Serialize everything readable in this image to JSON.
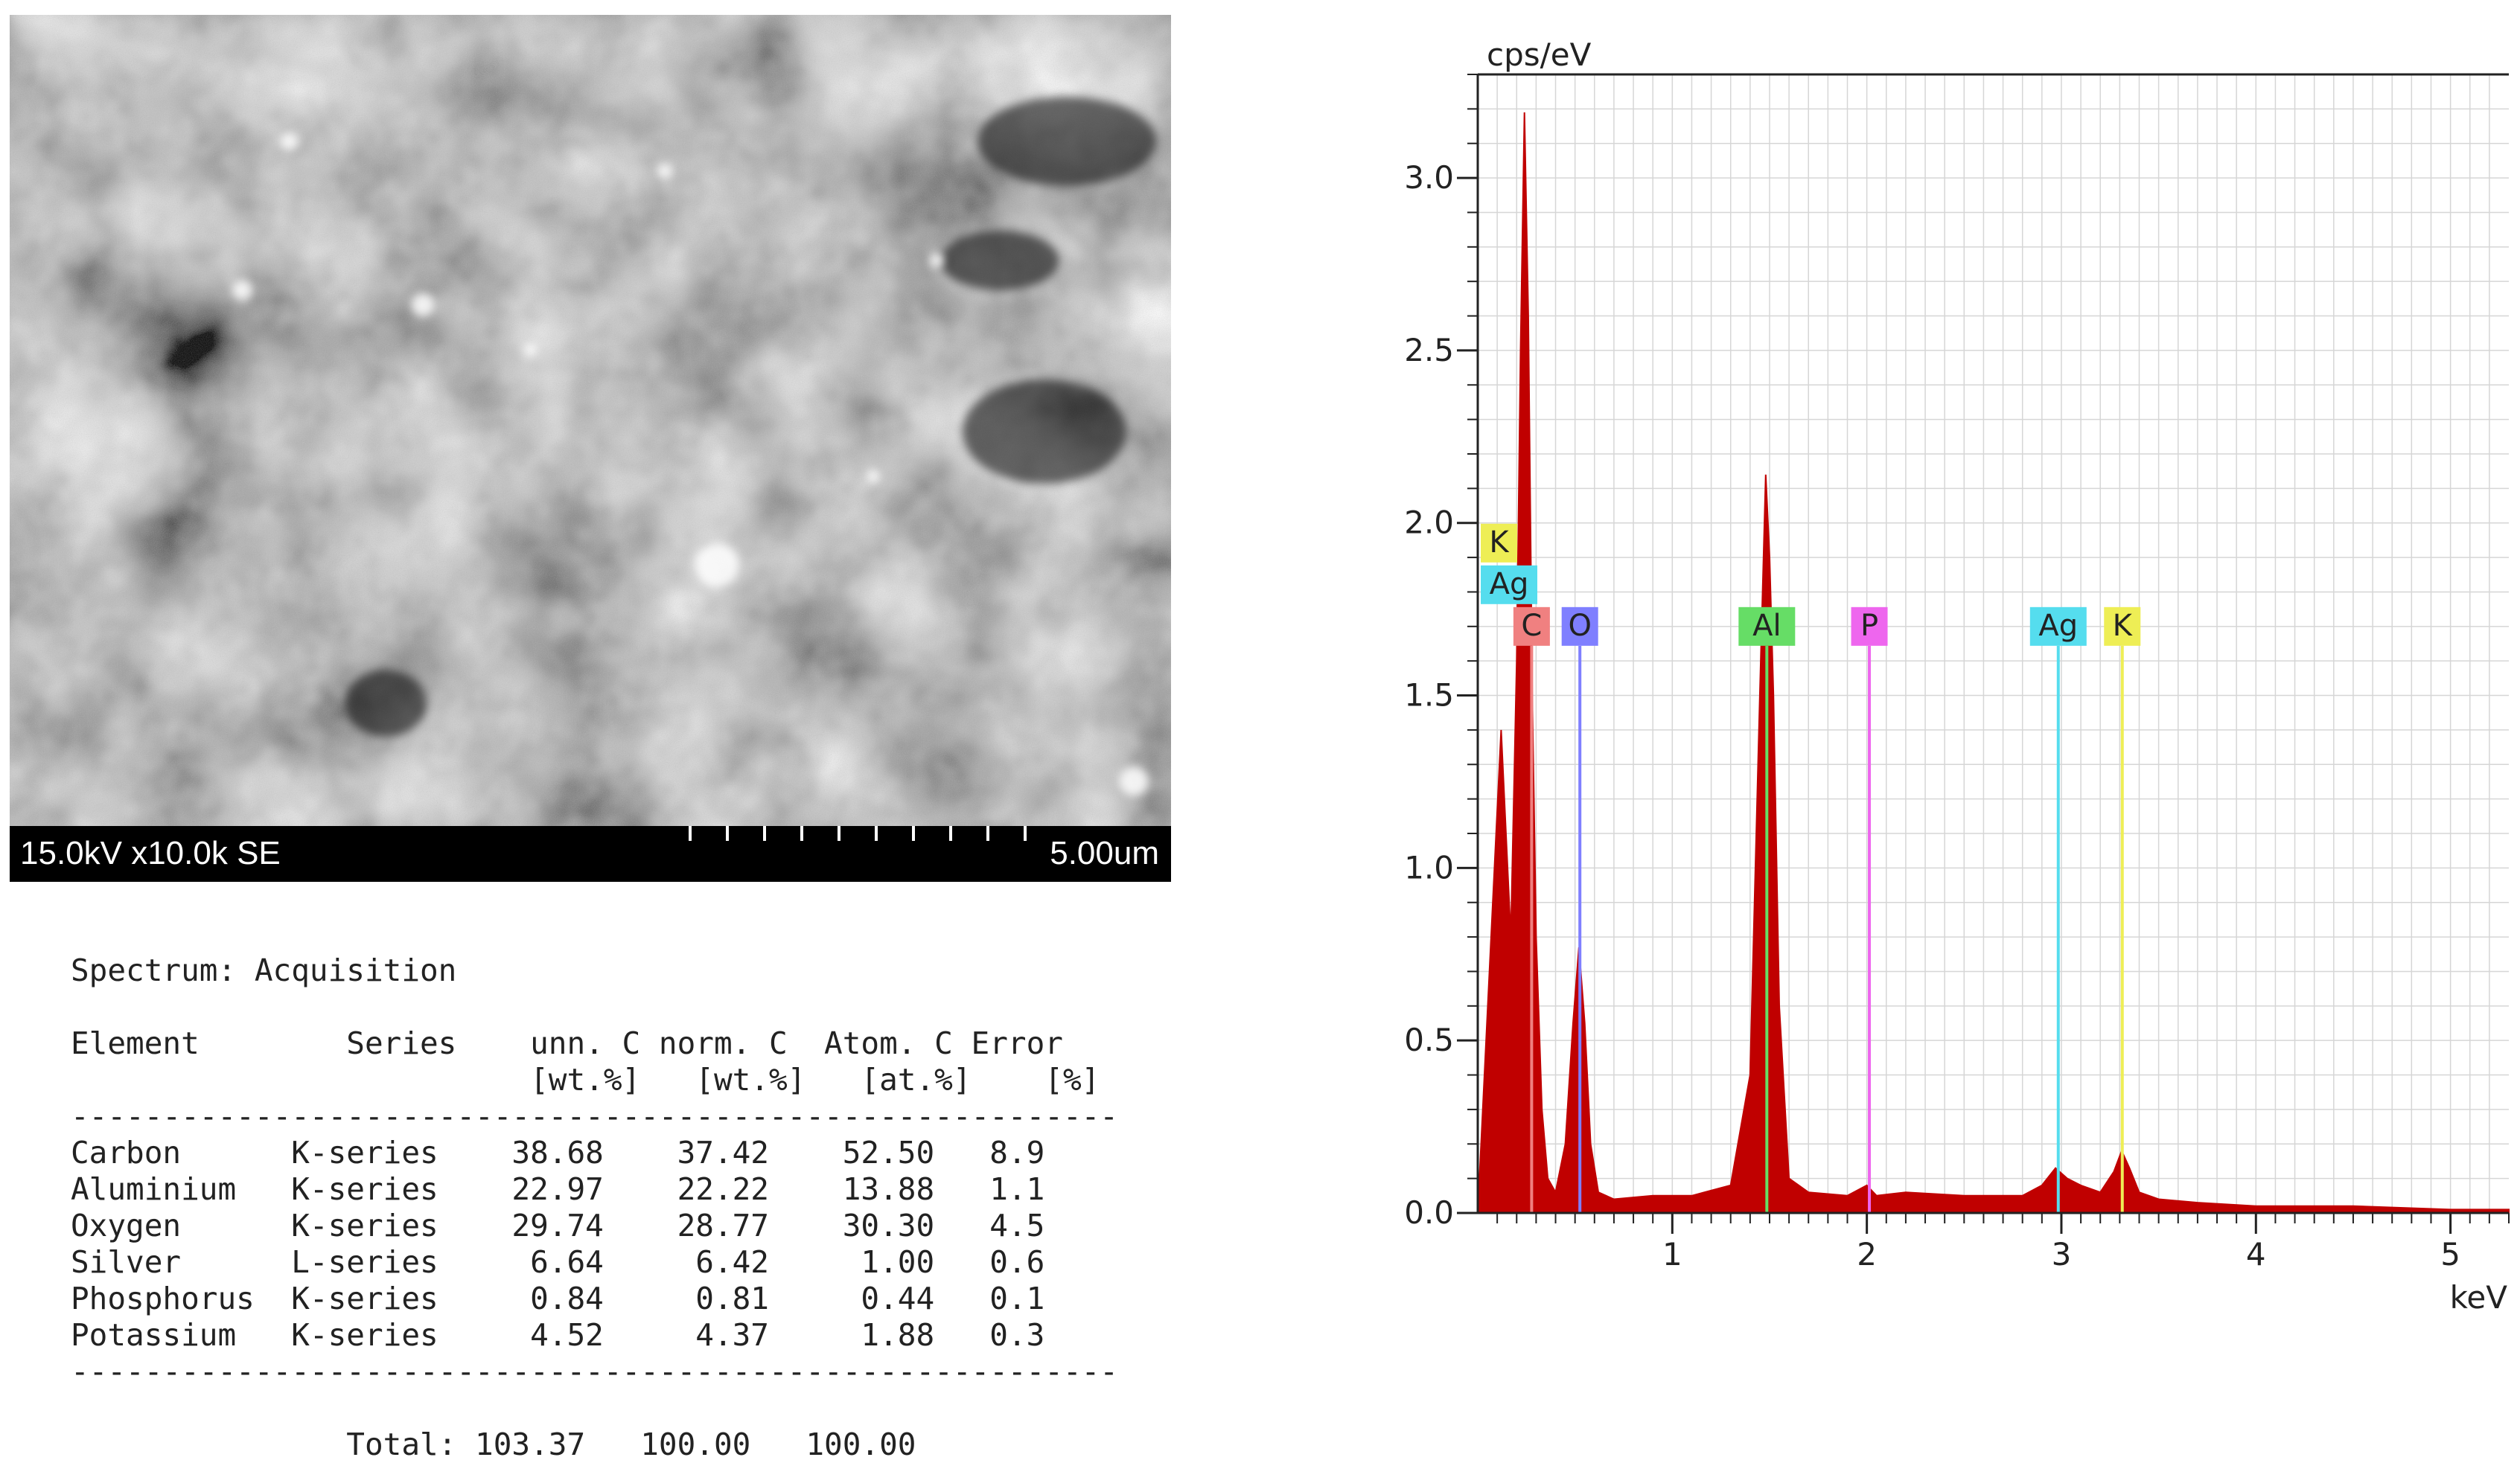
{
  "sem": {
    "params": "15.0kV x10.0k SE",
    "scale_label": "5.00um"
  },
  "table": {
    "title": "Spectrum: Acquisition",
    "columns": [
      {
        "name": "Element",
        "unit": ""
      },
      {
        "name": "Series",
        "unit": ""
      },
      {
        "name": "unn. C",
        "unit": "[wt.%]"
      },
      {
        "name": "norm. C",
        "unit": "[wt.%]"
      },
      {
        "name": "Atom. C",
        "unit": "[at.%]"
      },
      {
        "name": "Error",
        "unit": "[%]"
      }
    ],
    "rows": [
      {
        "element": "Carbon",
        "series": "K-series",
        "unn": "38.68",
        "norm": "37.42",
        "atom": "52.50",
        "error": "8.9"
      },
      {
        "element": "Aluminium",
        "series": "K-series",
        "unn": "22.97",
        "norm": "22.22",
        "atom": "13.88",
        "error": "1.1"
      },
      {
        "element": "Oxygen",
        "series": "K-series",
        "unn": "29.74",
        "norm": "28.77",
        "atom": "30.30",
        "error": "4.5"
      },
      {
        "element": "Silver",
        "series": "L-series",
        "unn": "6.64",
        "norm": "6.42",
        "atom": "1.00",
        "error": "0.6"
      },
      {
        "element": "Phosphorus",
        "series": "K-series",
        "unn": "0.84",
        "norm": "0.81",
        "atom": "0.44",
        "error": "0.1"
      },
      {
        "element": "Potassium",
        "series": "K-series",
        "unn": "4.52",
        "norm": "4.37",
        "atom": "1.88",
        "error": "0.3"
      }
    ],
    "total_label": "Total:",
    "total": {
      "unn": "103.37",
      "norm": "100.00",
      "atom": "100.00"
    }
  },
  "chart_data": {
    "type": "area",
    "title": "",
    "xlabel": "keV",
    "ylabel": "cps/eV",
    "xlim": [
      0,
      5.3
    ],
    "ylim": [
      0,
      3.3
    ],
    "x_ticks": [
      1,
      2,
      3,
      4,
      5
    ],
    "y_ticks": [
      0.0,
      0.5,
      1.0,
      1.5,
      2.0,
      2.5,
      3.0
    ],
    "grid": true,
    "spectrum_color": "#c00000",
    "spectrum": {
      "x": [
        0.0,
        0.12,
        0.17,
        0.2,
        0.22,
        0.24,
        0.26,
        0.28,
        0.3,
        0.33,
        0.36,
        0.4,
        0.45,
        0.49,
        0.52,
        0.55,
        0.58,
        0.62,
        0.7,
        0.9,
        1.1,
        1.3,
        1.4,
        1.45,
        1.48,
        1.5,
        1.52,
        1.55,
        1.6,
        1.7,
        1.9,
        2.0,
        2.05,
        2.2,
        2.5,
        2.8,
        2.9,
        2.97,
        3.03,
        3.1,
        3.2,
        3.27,
        3.31,
        3.35,
        3.4,
        3.5,
        3.7,
        4.0,
        4.5,
        5.0,
        5.3
      ],
      "y": [
        0.0,
        1.4,
        0.8,
        1.6,
        2.5,
        3.19,
        2.6,
        1.5,
        0.8,
        0.3,
        0.1,
        0.06,
        0.2,
        0.55,
        0.77,
        0.55,
        0.2,
        0.06,
        0.04,
        0.05,
        0.05,
        0.08,
        0.4,
        1.5,
        2.14,
        1.9,
        1.5,
        0.6,
        0.1,
        0.06,
        0.05,
        0.08,
        0.05,
        0.06,
        0.05,
        0.05,
        0.08,
        0.13,
        0.1,
        0.08,
        0.06,
        0.12,
        0.18,
        0.13,
        0.06,
        0.04,
        0.03,
        0.02,
        0.02,
        0.01,
        0.01
      ]
    },
    "element_lines": [
      {
        "element": "C",
        "x": 0.277,
        "color": "#f08080",
        "label_level": 0
      },
      {
        "element": "O",
        "x": 0.525,
        "color": "#7f7fff",
        "label_level": 0
      },
      {
        "element": "Al",
        "x": 1.486,
        "color": "#66dd66",
        "label_level": 0
      },
      {
        "element": "P",
        "x": 2.013,
        "color": "#ee66ee",
        "label_level": 0
      },
      {
        "element": "Ag",
        "x": 2.984,
        "color": "#55ddee",
        "label_level": 0
      },
      {
        "element": "K",
        "x": 3.313,
        "color": "#eeee55",
        "label_level": 0
      },
      {
        "element": "Ag",
        "x": 0.3,
        "color": "#55ddee",
        "label_level": 1
      },
      {
        "element": "K",
        "x": 0.26,
        "color": "#eeee55",
        "label_level": 2
      }
    ]
  }
}
